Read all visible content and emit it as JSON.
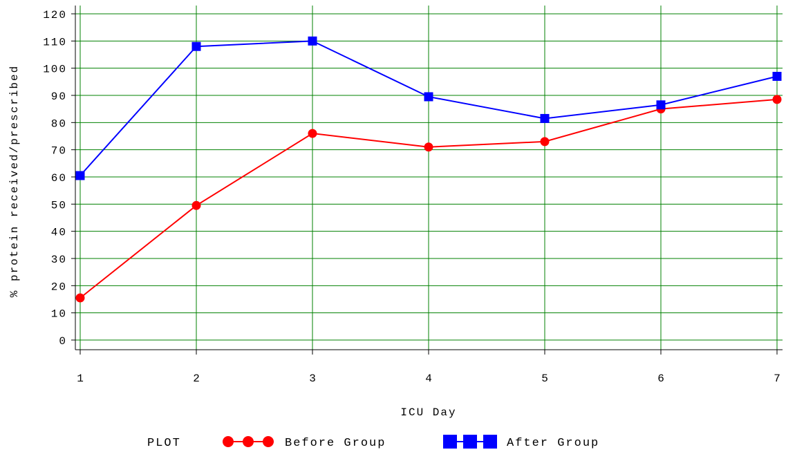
{
  "chart_data": {
    "type": "line",
    "xlabel": "ICU Day",
    "ylabel": "% protein received/prescribed",
    "x": [
      1,
      2,
      3,
      4,
      5,
      6,
      7
    ],
    "xticks": [
      "1",
      "2",
      "3",
      "4",
      "5",
      "6",
      "7"
    ],
    "xlim": [
      1,
      7
    ],
    "ylim": [
      0,
      120
    ],
    "yticks": [
      "0",
      "10",
      "20",
      "30",
      "40",
      "50",
      "60",
      "70",
      "80",
      "90",
      "100",
      "110",
      "120"
    ],
    "grid": true,
    "legend": {
      "title": "PLOT",
      "placement": "bottom-center"
    },
    "series": [
      {
        "name": "Before Group",
        "color": "#ff0000",
        "marker": "circle",
        "values": [
          15.5,
          49.5,
          76,
          71,
          73,
          85,
          88.5
        ]
      },
      {
        "name": "After Group",
        "color": "#0000ff",
        "marker": "square",
        "values": [
          60.5,
          108,
          110,
          89.5,
          81.5,
          86.5,
          97
        ]
      }
    ],
    "colors": {
      "grid": "#008000",
      "axis": "#000000"
    }
  }
}
